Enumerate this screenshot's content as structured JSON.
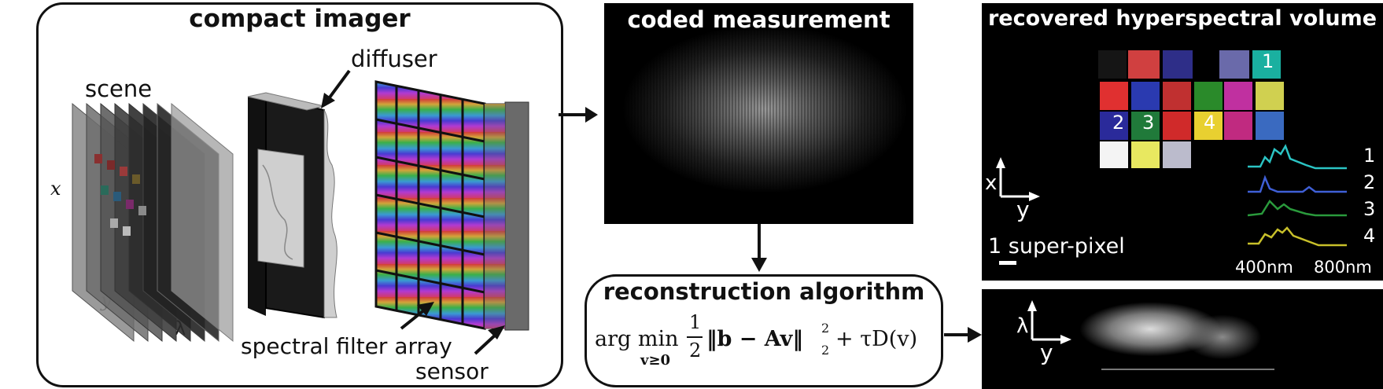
{
  "imager": {
    "title": "compact imager",
    "scene_label": "scene",
    "axis_x": "x",
    "axis_y": "y",
    "axis_lambda": "λ",
    "diffuser_label": "diffuser",
    "filter_label": "spectral filter array",
    "sensor_label": "sensor"
  },
  "measurement": {
    "title": "coded measurement"
  },
  "reconstruction": {
    "title": "reconstruction algorithm",
    "eq_argmin": "arg min",
    "eq_sub": "v≥0",
    "eq_half_num": "1",
    "eq_half_den": "2",
    "eq_body": "‖b − Av‖",
    "eq_sup": "2",
    "eq_sub2": "2",
    "eq_tail": "+ τD(v)"
  },
  "volume": {
    "title": "recovered hyperspectral volume",
    "axis_x": "x",
    "axis_y": "y",
    "scale_label": "1 super-pixel",
    "points": [
      "1",
      "2",
      "3",
      "4"
    ],
    "spectra_labels": [
      "1",
      "2",
      "3",
      "4"
    ],
    "wl_min": "400nm",
    "wl_max": "800nm",
    "colors": [
      "#2bc4c4",
      "#3f5fd6",
      "#2a9a3c",
      "#c8c02a"
    ]
  },
  "slice": {
    "axis_lambda": "λ",
    "axis_y": "y"
  }
}
